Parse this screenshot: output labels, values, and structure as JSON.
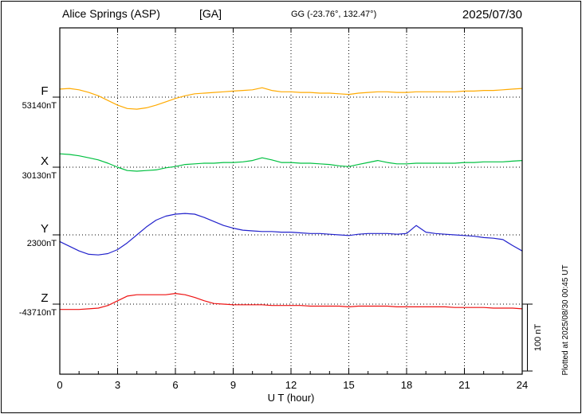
{
  "header": {
    "station": "Alice Springs (ASP)",
    "agency": "[GA]",
    "gg": "GG (-23.76°, 132.47°)",
    "date": "2025/07/30"
  },
  "axis": {
    "label": "U T (hour)",
    "ticks": [
      0,
      3,
      6,
      9,
      12,
      15,
      18,
      21,
      24
    ]
  },
  "scale_bar": {
    "label": "100 nT",
    "nT": 100
  },
  "footer": {
    "plotted_at": "Plotted at 2025/08/30 00:45 UT"
  },
  "chart_data": {
    "type": "line",
    "title": "Alice Springs (ASP) [GA] magnetogram 2025/07/30",
    "xlabel": "U T (hour)",
    "x_range_hours": [
      0,
      24
    ],
    "x_step_hours": 0.5,
    "scale_nT_per_division": 100,
    "grid": "dotted vertical lines every 3 hours; dotted horizontal baseline per component",
    "legend_position": "left margin labels",
    "series": [
      {
        "name": "F",
        "baseline_label": "53140nT",
        "baseline_nT": 53140,
        "color": "#ffaa00",
        "offsets_nT": [
          12,
          13,
          11,
          7,
          2,
          -5,
          -12,
          -17,
          -18,
          -16,
          -12,
          -7,
          -2,
          2,
          5,
          6,
          7,
          8,
          9,
          10,
          11,
          14,
          10,
          8,
          8,
          7,
          7,
          6,
          6,
          5,
          4,
          6,
          7,
          8,
          8,
          7,
          7,
          8,
          8,
          8,
          8,
          8,
          9,
          9,
          10,
          10,
          11,
          12,
          13
        ]
      },
      {
        "name": "X",
        "baseline_label": "30130nT",
        "baseline_nT": 30130,
        "color": "#00c040",
        "offsets_nT": [
          20,
          19,
          17,
          14,
          11,
          6,
          0,
          -5,
          -6,
          -5,
          -4,
          -1,
          1,
          4,
          5,
          6,
          6,
          7,
          7,
          8,
          10,
          14,
          11,
          7,
          7,
          6,
          6,
          5,
          4,
          2,
          1,
          4,
          7,
          10,
          7,
          5,
          5,
          6,
          6,
          6,
          6,
          6,
          7,
          7,
          8,
          8,
          8,
          9,
          10
        ]
      },
      {
        "name": "Y",
        "baseline_label": "2300nT",
        "baseline_nT": 2300,
        "color": "#2222cc",
        "offsets_nT": [
          -10,
          -17,
          -24,
          -29,
          -30,
          -28,
          -22,
          -12,
          0,
          12,
          22,
          28,
          31,
          32,
          31,
          26,
          20,
          14,
          10,
          7,
          6,
          5,
          5,
          4,
          4,
          3,
          2,
          2,
          1,
          0,
          -1,
          1,
          2,
          2,
          2,
          1,
          2,
          14,
          4,
          2,
          1,
          0,
          -1,
          -2,
          -4,
          -5,
          -7,
          -16,
          -24
        ]
      },
      {
        "name": "Z",
        "baseline_label": "-43710nT",
        "baseline_nT": -43710,
        "color": "#ee1111",
        "offsets_nT": [
          -8,
          -8,
          -8,
          -7,
          -6,
          -2,
          5,
          12,
          14,
          14,
          14,
          14,
          16,
          14,
          10,
          5,
          1,
          0,
          -1,
          -1,
          -1,
          -1,
          -2,
          -2,
          -2,
          -2,
          -3,
          -3,
          -3,
          -3,
          -4,
          -3,
          -3,
          -3,
          -3,
          -4,
          -4,
          -4,
          -4,
          -4,
          -4,
          -5,
          -5,
          -5,
          -5,
          -6,
          -6,
          -6,
          -7
        ]
      }
    ]
  }
}
